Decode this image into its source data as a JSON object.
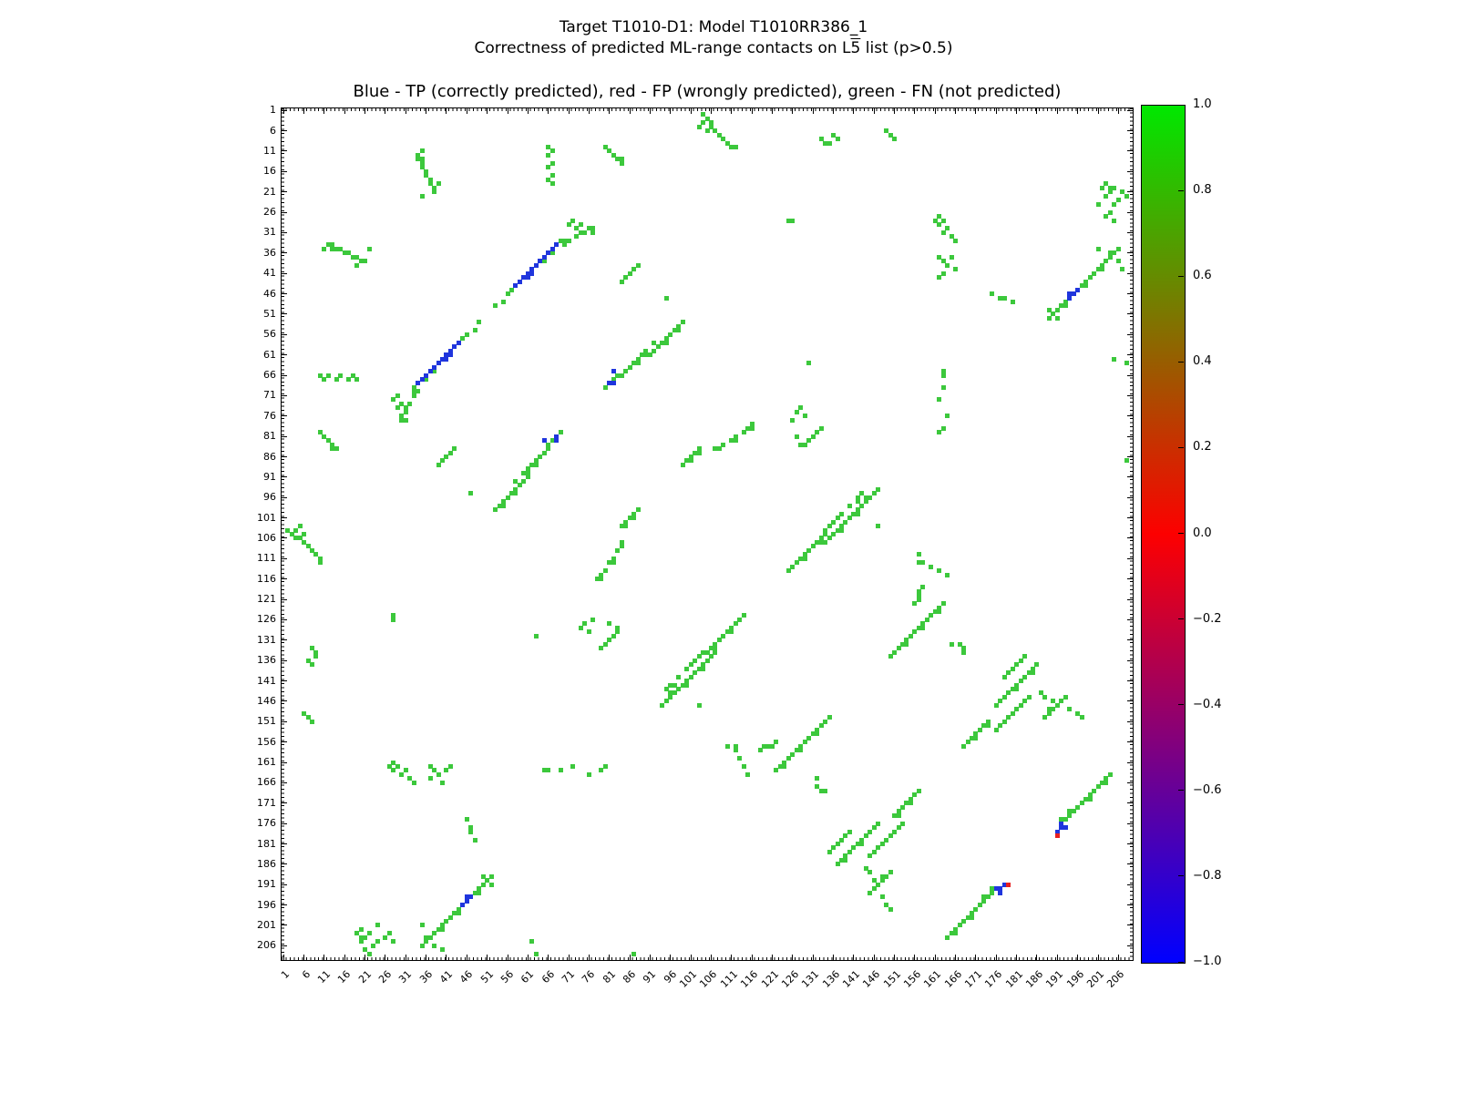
{
  "header": {
    "title_line1": "Target T1010-D1: Model T1010RR386_1",
    "subtitle_pre": "Correctness of predicted ML-range contacts on L",
    "subtitle_overline": "5",
    "subtitle_post": " list (p>0.5)"
  },
  "chart_data": {
    "type": "heatmap",
    "axes_title": "Blue - TP (correctly predicted), red - FP (wrongly predicted), green - FN (not predicted)",
    "axis_min": 1,
    "axis_max": 208,
    "grid": false,
    "x_ticks": [
      "1",
      "6",
      "11",
      "16",
      "21",
      "26",
      "31",
      "36",
      "41",
      "46",
      "51",
      "56",
      "61",
      "66",
      "71",
      "76",
      "81",
      "86",
      "91",
      "96",
      "101",
      "106",
      "111",
      "116",
      "121",
      "126",
      "131",
      "136",
      "141",
      "146",
      "151",
      "156",
      "161",
      "166",
      "171",
      "176",
      "181",
      "186",
      "191",
      "196",
      "201",
      "206"
    ],
    "y_ticks": [
      "1",
      "6",
      "11",
      "16",
      "21",
      "26",
      "31",
      "36",
      "41",
      "46",
      "51",
      "56",
      "61",
      "66",
      "71",
      "76",
      "81",
      "86",
      "91",
      "96",
      "101",
      "106",
      "111",
      "116",
      "121",
      "126",
      "131",
      "136",
      "141",
      "146",
      "151",
      "156",
      "161",
      "166",
      "171",
      "176",
      "181",
      "186",
      "191",
      "196",
      "201",
      "206"
    ],
    "legend_classes": {
      "tp": "TP (correctly predicted)",
      "fp": "FP (wrongly predicted)",
      "fn": "FN (not predicted)"
    },
    "colors": {
      "tp": "#1f35dd",
      "fp": "#e82020",
      "fn": "#3cc83c"
    },
    "colorbar": {
      "ticks": [
        "1.0",
        "0.8",
        "0.6",
        "0.4",
        "0.2",
        "0.0",
        "−0.2",
        "−0.4",
        "−0.6",
        "−0.8",
        "−1.0"
      ],
      "gradient": [
        "#00e800",
        "#7f7400",
        "#fd0000",
        "#7f0080",
        "#0000ff"
      ]
    },
    "symmetric": true,
    "points": {
      "fn": [
        [
          2,
          104
        ],
        [
          3,
          105
        ],
        [
          4,
          104
        ],
        [
          4,
          106
        ],
        [
          5,
          103
        ],
        [
          5,
          106
        ],
        [
          6,
          105
        ],
        [
          6,
          107
        ],
        [
          7,
          108
        ],
        [
          8,
          109
        ],
        [
          9,
          110
        ],
        [
          10,
          111
        ],
        [
          10,
          112
        ],
        [
          8,
          133
        ],
        [
          9,
          134
        ],
        [
          9,
          135
        ],
        [
          7,
          136
        ],
        [
          8,
          137
        ],
        [
          6,
          149
        ],
        [
          7,
          150
        ],
        [
          8,
          151
        ],
        [
          10,
          80
        ],
        [
          11,
          81
        ],
        [
          12,
          82
        ],
        [
          13,
          83
        ],
        [
          13,
          84
        ],
        [
          14,
          84
        ],
        [
          10,
          66
        ],
        [
          11,
          67
        ],
        [
          12,
          66
        ],
        [
          14,
          67
        ],
        [
          15,
          66
        ],
        [
          17,
          67
        ],
        [
          18,
          66
        ],
        [
          19,
          67
        ],
        [
          11,
          35
        ],
        [
          12,
          34
        ],
        [
          13,
          34
        ],
        [
          13,
          35
        ],
        [
          14,
          35
        ],
        [
          15,
          35
        ],
        [
          16,
          36
        ],
        [
          17,
          36
        ],
        [
          18,
          37
        ],
        [
          19,
          37
        ],
        [
          19,
          39
        ],
        [
          20,
          38
        ],
        [
          21,
          38
        ],
        [
          22,
          35
        ],
        [
          19,
          203
        ],
        [
          20,
          204
        ],
        [
          21,
          204
        ],
        [
          21,
          207
        ],
        [
          22,
          203
        ],
        [
          22,
          208
        ],
        [
          24,
          205
        ],
        [
          26,
          204
        ],
        [
          27,
          203
        ],
        [
          28,
          205
        ],
        [
          20,
          205
        ],
        [
          23,
          206
        ],
        [
          20,
          202
        ],
        [
          24,
          201
        ],
        [
          27,
          162
        ],
        [
          28,
          161
        ],
        [
          28,
          163
        ],
        [
          29,
          162
        ],
        [
          30,
          164
        ],
        [
          31,
          163
        ],
        [
          32,
          165
        ],
        [
          33,
          166
        ],
        [
          37,
          162
        ],
        [
          38,
          163
        ],
        [
          41,
          163
        ],
        [
          42,
          162
        ],
        [
          37,
          165
        ],
        [
          39,
          164
        ],
        [
          40,
          166
        ],
        [
          28,
          126
        ],
        [
          28,
          125
        ],
        [
          28,
          72
        ],
        [
          29,
          71
        ],
        [
          29,
          74
        ],
        [
          30,
          73
        ],
        [
          30,
          76
        ],
        [
          31,
          77
        ],
        [
          30,
          77
        ],
        [
          31,
          75
        ],
        [
          31,
          74
        ],
        [
          32,
          73
        ],
        [
          33,
          71
        ],
        [
          33,
          70
        ],
        [
          34,
          70
        ],
        [
          33,
          69
        ],
        [
          36,
          67
        ],
        [
          38,
          65
        ],
        [
          45,
          57
        ],
        [
          46,
          56
        ],
        [
          48,
          55
        ],
        [
          49,
          53
        ],
        [
          35,
          206
        ],
        [
          36,
          205
        ],
        [
          37,
          204
        ],
        [
          38,
          203
        ],
        [
          39,
          202
        ],
        [
          40,
          201
        ],
        [
          41,
          200
        ],
        [
          42,
          199
        ],
        [
          43,
          198
        ],
        [
          44,
          197
        ],
        [
          48,
          193
        ],
        [
          49,
          192
        ],
        [
          50,
          191
        ],
        [
          51,
          190
        ],
        [
          52,
          189
        ],
        [
          36,
          204
        ],
        [
          40,
          202
        ],
        [
          44,
          198
        ],
        [
          49,
          193
        ],
        [
          38,
          206
        ],
        [
          40,
          207
        ],
        [
          50,
          189
        ],
        [
          35,
          201
        ],
        [
          52,
          191
        ],
        [
          47,
          178
        ],
        [
          48,
          180
        ],
        [
          47,
          177
        ],
        [
          40,
          87
        ],
        [
          47,
          95
        ],
        [
          39,
          88
        ],
        [
          41,
          86
        ],
        [
          42,
          85
        ],
        [
          43,
          84
        ],
        [
          53,
          99
        ],
        [
          54,
          98
        ],
        [
          55,
          97
        ],
        [
          55,
          98
        ],
        [
          56,
          96
        ],
        [
          57,
          95
        ],
        [
          58,
          94
        ],
        [
          58,
          95
        ],
        [
          59,
          93
        ],
        [
          60,
          92
        ],
        [
          61,
          91
        ],
        [
          58,
          92
        ],
        [
          60,
          90
        ],
        [
          61,
          89
        ],
        [
          62,
          88
        ],
        [
          63,
          87
        ],
        [
          64,
          86
        ],
        [
          65,
          85
        ],
        [
          66,
          84
        ],
        [
          63,
          88
        ],
        [
          66,
          83
        ],
        [
          67,
          82
        ],
        [
          69,
          80
        ],
        [
          61,
          90
        ],
        [
          84,
          103
        ],
        [
          85,
          102
        ],
        [
          86,
          101
        ],
        [
          87,
          100
        ],
        [
          88,
          99
        ],
        [
          85,
          103
        ],
        [
          87,
          101
        ],
        [
          78,
          116
        ],
        [
          79,
          115
        ],
        [
          80,
          114
        ],
        [
          81,
          112
        ],
        [
          82,
          111
        ],
        [
          83,
          109
        ],
        [
          84,
          108
        ],
        [
          79,
          116
        ],
        [
          82,
          112
        ],
        [
          84,
          107
        ],
        [
          96,
          142
        ],
        [
          98,
          140
        ],
        [
          100,
          138
        ],
        [
          102,
          136
        ],
        [
          104,
          134
        ],
        [
          97,
          142
        ],
        [
          101,
          137
        ],
        [
          95,
          143
        ],
        [
          103,
          135
        ],
        [
          94,
          147
        ],
        [
          95,
          146
        ],
        [
          96,
          145
        ],
        [
          97,
          144
        ],
        [
          98,
          143
        ],
        [
          99,
          142
        ],
        [
          100,
          141
        ],
        [
          101,
          140
        ],
        [
          102,
          139
        ],
        [
          103,
          138
        ],
        [
          104,
          137
        ],
        [
          105,
          136
        ],
        [
          106,
          135
        ],
        [
          107,
          134
        ],
        [
          96,
          144
        ],
        [
          100,
          142
        ],
        [
          104,
          138
        ],
        [
          105,
          134
        ],
        [
          106,
          133
        ],
        [
          107,
          132
        ],
        [
          108,
          131
        ],
        [
          109,
          130
        ],
        [
          110,
          129
        ],
        [
          111,
          128
        ],
        [
          112,
          127
        ],
        [
          113,
          126
        ],
        [
          114,
          125
        ],
        [
          107,
          133
        ],
        [
          111,
          129
        ],
        [
          122,
          163
        ],
        [
          123,
          162
        ],
        [
          124,
          161
        ],
        [
          125,
          160
        ],
        [
          126,
          159
        ],
        [
          127,
          158
        ],
        [
          128,
          157
        ],
        [
          129,
          156
        ],
        [
          130,
          155
        ],
        [
          131,
          154
        ],
        [
          132,
          153
        ],
        [
          133,
          152
        ],
        [
          134,
          151
        ],
        [
          135,
          150
        ],
        [
          124,
          162
        ],
        [
          128,
          158
        ],
        [
          132,
          154
        ],
        [
          132,
          165
        ],
        [
          132,
          167
        ],
        [
          133,
          168
        ],
        [
          134,
          168
        ],
        [
          137,
          186
        ],
        [
          138,
          185
        ],
        [
          139,
          184
        ],
        [
          140,
          183
        ],
        [
          141,
          182
        ],
        [
          142,
          181
        ],
        [
          143,
          180
        ],
        [
          144,
          179
        ],
        [
          145,
          178
        ],
        [
          146,
          177
        ],
        [
          147,
          176
        ],
        [
          139,
          185
        ],
        [
          143,
          181
        ],
        [
          144,
          187
        ],
        [
          145,
          188
        ],
        [
          146,
          190
        ],
        [
          147,
          191
        ],
        [
          148,
          189
        ],
        [
          148,
          194
        ],
        [
          149,
          196
        ],
        [
          150,
          197
        ],
        [
          110,
          157
        ],
        [
          112,
          158
        ],
        [
          113,
          160
        ],
        [
          114,
          162
        ],
        [
          115,
          164
        ],
        [
          118,
          158
        ],
        [
          120,
          157
        ],
        [
          122,
          156
        ],
        [
          112,
          157
        ],
        [
          119,
          157
        ],
        [
          121,
          157
        ],
        [
          151,
          174
        ],
        [
          152,
          173
        ],
        [
          153,
          172
        ],
        [
          154,
          171
        ],
        [
          155,
          170
        ],
        [
          156,
          169
        ],
        [
          157,
          168
        ],
        [
          152,
          174
        ],
        [
          155,
          171
        ],
        [
          145,
          184
        ],
        [
          146,
          183
        ],
        [
          147,
          182
        ],
        [
          148,
          181
        ],
        [
          149,
          180
        ],
        [
          150,
          179
        ],
        [
          151,
          178
        ],
        [
          152,
          177
        ],
        [
          153,
          176
        ],
        [
          145,
          193
        ],
        [
          146,
          192
        ],
        [
          148,
          190
        ],
        [
          149,
          189
        ],
        [
          150,
          188
        ],
        [
          135,
          183
        ],
        [
          136,
          182
        ],
        [
          137,
          181
        ],
        [
          138,
          180
        ],
        [
          139,
          179
        ],
        [
          140,
          178
        ],
        [
          164,
          204
        ],
        [
          165,
          203
        ],
        [
          166,
          202
        ],
        [
          167,
          201
        ],
        [
          168,
          200
        ],
        [
          169,
          199
        ],
        [
          170,
          198
        ],
        [
          171,
          197
        ],
        [
          172,
          196
        ],
        [
          173,
          195
        ],
        [
          174,
          194
        ],
        [
          175,
          193
        ],
        [
          166,
          203
        ],
        [
          170,
          199
        ],
        [
          173,
          194
        ],
        [
          175,
          192
        ],
        [
          62,
          205
        ],
        [
          63,
          208
        ],
        [
          87,
          208
        ],
        [
          63,
          130
        ],
        [
          46,
          175
        ],
        [
          74,
          128
        ],
        [
          75,
          127
        ],
        [
          76,
          129
        ],
        [
          77,
          126
        ],
        [
          79,
          133
        ],
        [
          80,
          132
        ],
        [
          81,
          131
        ],
        [
          82,
          130
        ],
        [
          83,
          129
        ],
        [
          103,
          147
        ],
        [
          81,
          127
        ],
        [
          83,
          128
        ],
        [
          65,
          163
        ],
        [
          66,
          163
        ],
        [
          69,
          163
        ],
        [
          72,
          162
        ],
        [
          76,
          164
        ],
        [
          79,
          163
        ],
        [
          80,
          162
        ]
      ],
      "tp": [
        [
          34,
          68
        ],
        [
          35,
          67
        ],
        [
          36,
          66
        ],
        [
          37,
          65
        ],
        [
          38,
          64
        ],
        [
          39,
          63
        ],
        [
          40,
          62
        ],
        [
          41,
          61
        ],
        [
          42,
          60
        ],
        [
          43,
          59
        ],
        [
          44,
          58
        ],
        [
          41,
          62
        ],
        [
          42,
          61
        ],
        [
          45,
          196
        ],
        [
          46,
          195
        ],
        [
          47,
          194
        ],
        [
          46,
          194
        ],
        [
          68,
          81
        ],
        [
          68,
          82
        ],
        [
          65,
          82
        ],
        [
          176,
          192
        ],
        [
          177,
          192
        ],
        [
          177,
          193
        ],
        [
          178,
          191
        ]
      ],
      "fp": [
        [
          179,
          191
        ]
      ]
    }
  }
}
